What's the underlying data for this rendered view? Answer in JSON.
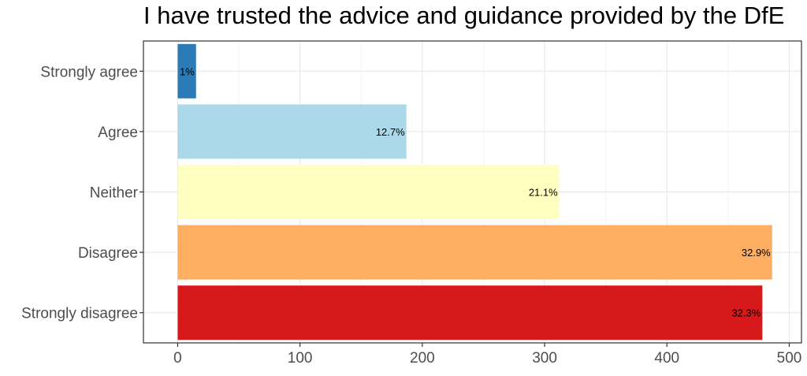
{
  "chart_data": {
    "type": "bar",
    "orientation": "horizontal",
    "title": "I have trusted the advice and guidance provided by the DfE",
    "xlabel": "",
    "ylabel": "",
    "categories": [
      "Strongly agree",
      "Agree",
      "Neither",
      "Disagree",
      "Strongly disagree"
    ],
    "values": [
      15,
      187,
      312,
      486,
      478
    ],
    "labels": [
      "1%",
      "12.7%",
      "21.1%",
      "32.9%",
      "32.3%"
    ],
    "colors": [
      "#2c7bb6",
      "#abd9e9",
      "#ffffbf",
      "#fdae61",
      "#d7191c"
    ],
    "xlim": [
      -28,
      510
    ],
    "xticks": [
      0,
      100,
      200,
      300,
      400,
      500
    ],
    "grid": true,
    "legend": "none"
  }
}
